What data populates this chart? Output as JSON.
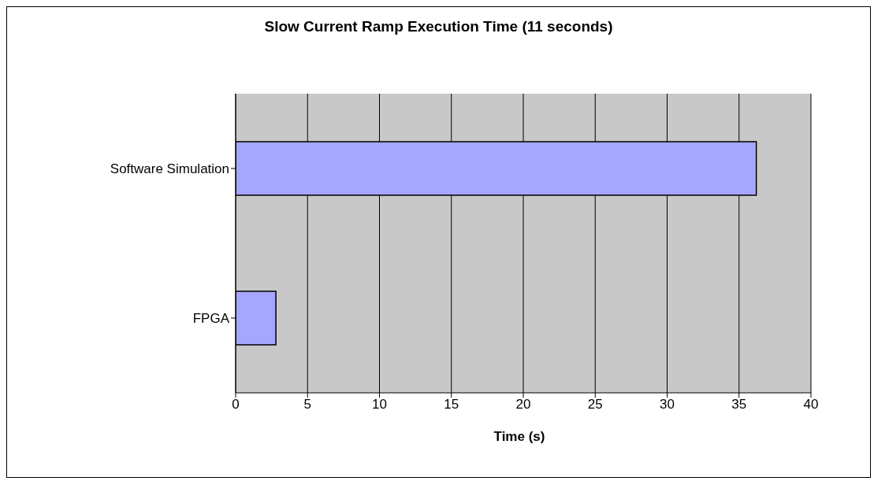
{
  "chart_data": {
    "type": "bar",
    "orientation": "horizontal",
    "title": "Slow Current Ramp Execution Time (11 seconds)",
    "xlabel": "Time (s)",
    "categories": [
      "Software Simulation",
      "FPGA"
    ],
    "values": [
      36.2,
      2.8
    ],
    "color": "#a6a6ff",
    "xlim": [
      0,
      40
    ],
    "xticks": [
      0,
      5,
      10,
      15,
      20,
      25,
      30,
      35,
      40
    ],
    "grid": "x"
  }
}
